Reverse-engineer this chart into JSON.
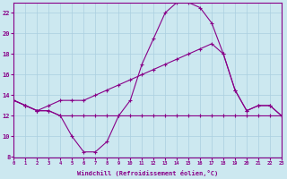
{
  "background_color": "#cce8f0",
  "grid_color": "#aacfe0",
  "line_color": "#880088",
  "xlabel": "Windchill (Refroidissement éolien,°C)",
  "xlim": [
    0,
    23
  ],
  "ylim": [
    8,
    23
  ],
  "yticks": [
    8,
    10,
    12,
    14,
    16,
    18,
    20,
    22
  ],
  "xticks": [
    0,
    1,
    2,
    3,
    4,
    5,
    6,
    7,
    8,
    9,
    10,
    11,
    12,
    13,
    14,
    15,
    16,
    17,
    18,
    19,
    20,
    21,
    22,
    23
  ],
  "hours": [
    0,
    1,
    2,
    3,
    4,
    5,
    6,
    7,
    8,
    9,
    10,
    11,
    12,
    13,
    14,
    15,
    16,
    17,
    18,
    19,
    20,
    21,
    22,
    23
  ],
  "temp_curve": [
    13.5,
    13.0,
    12.5,
    12.5,
    12.0,
    10.0,
    8.5,
    8.5,
    9.5,
    12.0,
    13.5,
    17.0,
    19.5,
    22.0,
    23.0,
    23.0,
    22.5,
    21.0,
    18.0,
    14.5,
    12.5,
    13.0,
    13.0,
    12.0
  ],
  "diag_line_x": [
    0,
    1,
    2,
    3,
    4,
    5,
    6,
    7,
    8,
    9,
    10,
    11,
    12,
    13,
    14,
    15,
    16,
    17,
    18,
    19,
    20,
    21,
    22,
    23
  ],
  "diag_line_y": [
    13.5,
    13.0,
    12.5,
    13.0,
    13.5,
    13.5,
    13.5,
    14.0,
    14.5,
    15.0,
    15.5,
    16.0,
    16.5,
    17.0,
    17.5,
    18.0,
    18.5,
    19.0,
    18.0,
    14.5,
    12.5,
    13.0,
    13.0,
    12.0
  ],
  "flat_line_x": [
    0,
    1,
    2,
    3,
    4,
    5,
    6,
    7,
    8,
    9,
    10,
    11,
    12,
    13,
    14,
    15,
    16,
    17,
    18,
    19,
    20,
    21,
    22,
    23
  ],
  "flat_line_y": [
    13.5,
    13.0,
    12.5,
    12.5,
    12.0,
    12.0,
    12.0,
    12.0,
    12.0,
    12.0,
    12.0,
    12.0,
    12.0,
    12.0,
    12.0,
    12.0,
    12.0,
    12.0,
    12.0,
    12.0,
    12.0,
    12.0,
    12.0,
    12.0
  ]
}
